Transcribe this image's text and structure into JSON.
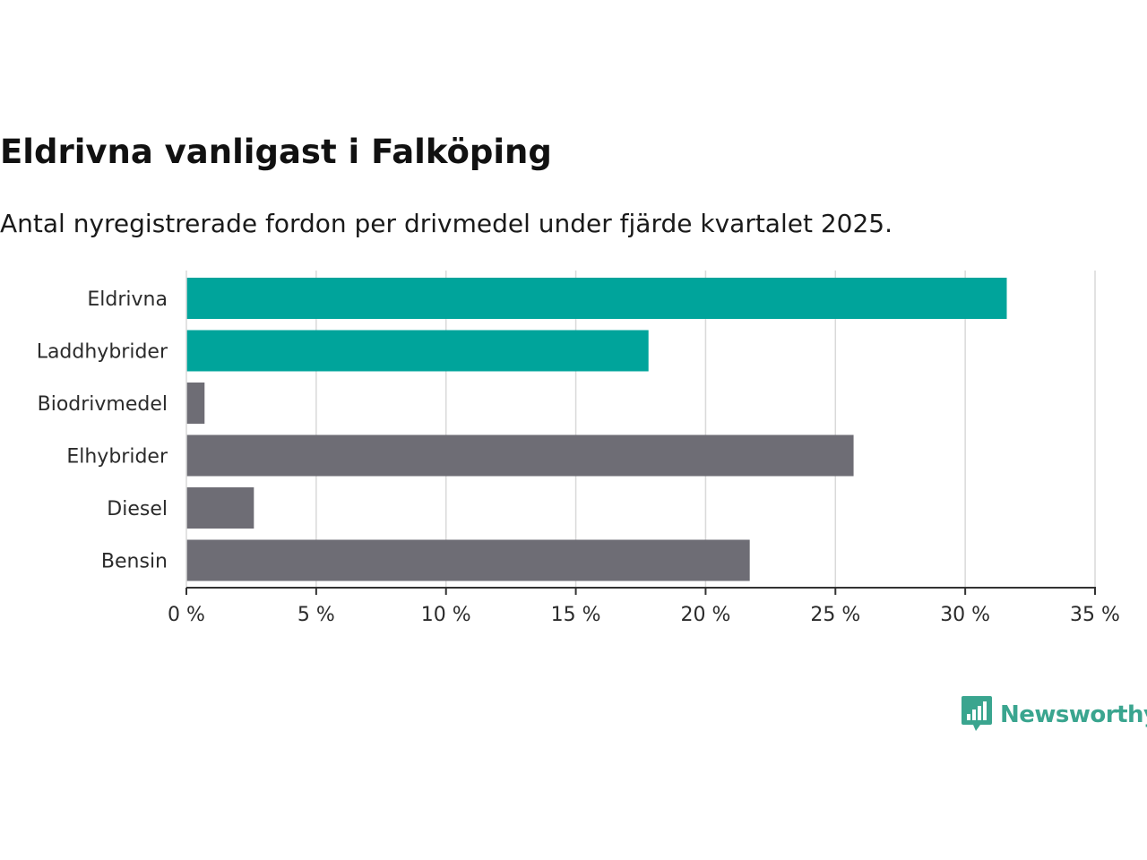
{
  "colors": {
    "highlight": "#00a49b",
    "default": "#6e6d75",
    "grid": "#d9d9d9",
    "axis": "#333333",
    "brand": "#3aa58f"
  },
  "brand": {
    "name": "Newsworthy",
    "icon": "bar-chart-speech-bubble-icon"
  },
  "chart_data": {
    "type": "bar",
    "orientation": "horizontal",
    "title": "Eldrivna vanligast i Falköping",
    "subtitle": "Antal nyregistrerade fordon per drivmedel under fjärde kvartalet 2025.",
    "xlabel": "",
    "ylabel": "",
    "unit": "%",
    "categories": [
      "Eldrivna",
      "Laddhybrider",
      "Biodrivmedel",
      "Elhybrider",
      "Diesel",
      "Bensin"
    ],
    "values": [
      31.6,
      17.8,
      0.7,
      25.7,
      2.6,
      21.7
    ],
    "highlighted": [
      true,
      true,
      false,
      false,
      false,
      false
    ],
    "xlim": [
      0,
      35
    ],
    "xticks": [
      0,
      5,
      10,
      15,
      20,
      25,
      30,
      35
    ],
    "xtick_labels": [
      "0 %",
      "5 %",
      "10 %",
      "15 %",
      "20 %",
      "25 %",
      "30 %",
      "35 %"
    ],
    "grid": true,
    "legend": "none"
  }
}
